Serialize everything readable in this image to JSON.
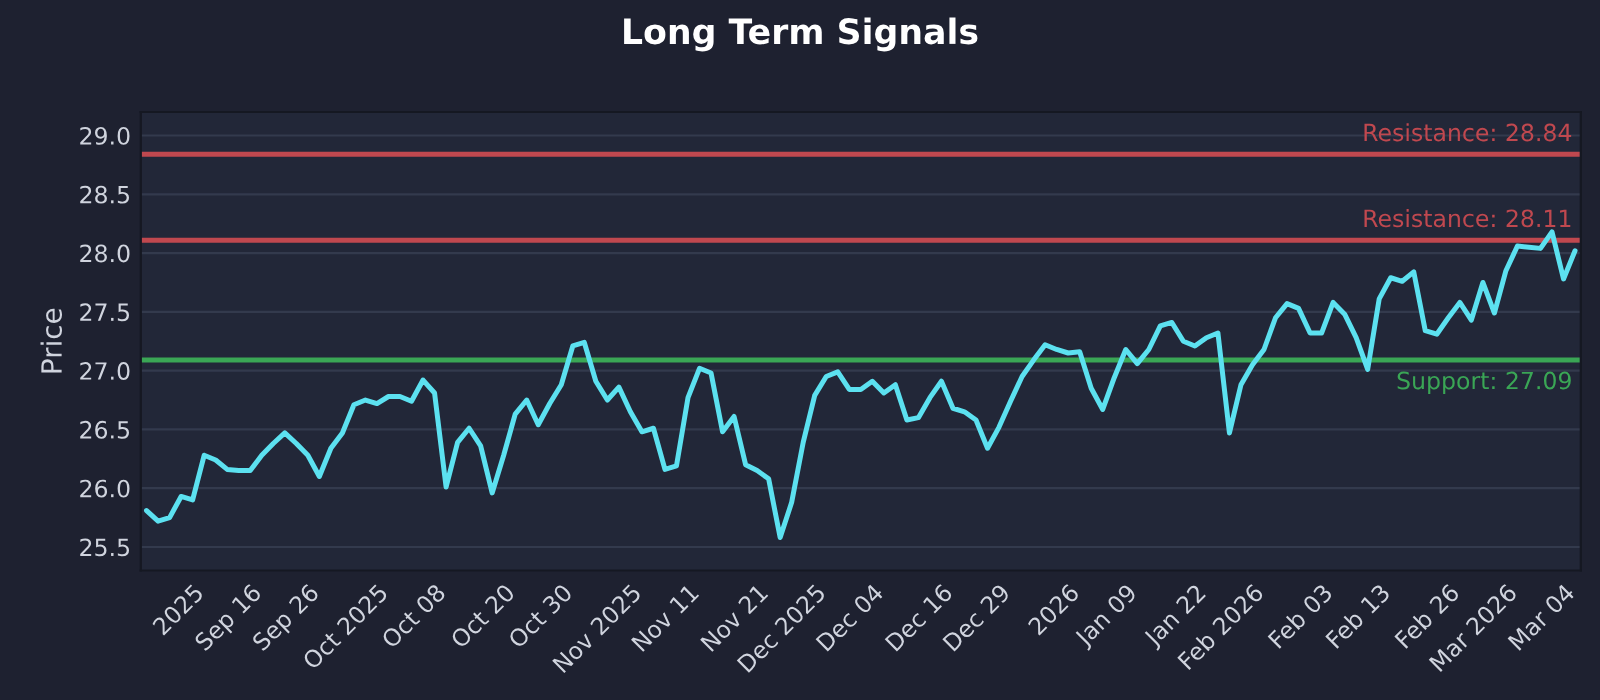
{
  "chart_data": {
    "type": "line",
    "title": "Long Term Signals",
    "ylabel": "Price",
    "categories": [
      null,
      null,
      null,
      null,
      "2025",
      null,
      null,
      null,
      null,
      "Sep 16",
      null,
      null,
      null,
      null,
      "Sep 26",
      null,
      null,
      null,
      null,
      null,
      "Oct 2025",
      null,
      null,
      null,
      null,
      "Oct 08",
      null,
      null,
      null,
      null,
      null,
      "Oct 20",
      null,
      null,
      null,
      null,
      "Oct 30",
      null,
      null,
      null,
      null,
      null,
      "Nov 2025",
      null,
      null,
      null,
      null,
      "Nov 11",
      null,
      null,
      null,
      null,
      null,
      "Nov 21",
      null,
      null,
      null,
      null,
      "Dec 2025",
      null,
      null,
      null,
      null,
      "Dec 04",
      null,
      null,
      null,
      null,
      null,
      "Dec 16",
      null,
      null,
      null,
      null,
      "Dec 29",
      null,
      null,
      null,
      null,
      null,
      "2026",
      null,
      null,
      null,
      null,
      "Jan 09",
      null,
      null,
      null,
      null,
      null,
      "Jan 22",
      null,
      null,
      null,
      null,
      "Feb 2026",
      null,
      null,
      null,
      null,
      null,
      "Feb 03",
      null,
      null,
      null,
      null,
      "Feb 13",
      null,
      null,
      null,
      null,
      null,
      "Feb 26",
      null,
      null,
      null,
      null,
      "Mar 2026",
      null,
      null,
      null,
      null,
      "Mar 04",
      null
    ],
    "series": [
      {
        "color": "#5ce1f0",
        "values": [
          25.81,
          25.72,
          25.75,
          25.93,
          25.9,
          26.28,
          26.24,
          26.16,
          26.15,
          26.15,
          26.28,
          26.38,
          26.47,
          26.38,
          26.28,
          26.1,
          26.34,
          26.47,
          26.71,
          26.75,
          26.72,
          26.78,
          26.78,
          26.74,
          26.92,
          26.81,
          26.01,
          26.39,
          26.51,
          26.36,
          25.96,
          26.28,
          26.63,
          26.75,
          26.54,
          26.72,
          26.88,
          27.21,
          27.24,
          26.91,
          26.75,
          26.86,
          26.65,
          26.48,
          26.51,
          26.16,
          26.19,
          26.77,
          27.02,
          26.98,
          26.48,
          26.61,
          26.2,
          26.15,
          26.08,
          25.58,
          25.88,
          26.39,
          26.79,
          26.95,
          26.99,
          26.84,
          26.84,
          26.91,
          26.81,
          26.88,
          26.58,
          26.6,
          26.77,
          26.91,
          26.68,
          26.65,
          26.58,
          26.34,
          26.52,
          26.74,
          26.95,
          27.09,
          27.22,
          27.18,
          27.15,
          27.16,
          26.85,
          26.67,
          26.94,
          27.18,
          27.06,
          27.18,
          27.38,
          27.41,
          27.25,
          27.21,
          27.28,
          27.32,
          26.47,
          26.88,
          27.05,
          27.18,
          27.45,
          27.57,
          27.53,
          27.32,
          27.32,
          27.58,
          27.48,
          27.28,
          27.01,
          27.61,
          27.79,
          27.76,
          27.84,
          27.34,
          27.31,
          27.45,
          27.58,
          27.43,
          27.75,
          27.49,
          27.85,
          28.06,
          28.05,
          28.04,
          28.18,
          27.78,
          28.02
        ]
      }
    ],
    "ylim": [
      25.3,
      29.2
    ],
    "yticks": [
      {
        "value": 25.5,
        "label": "25.5"
      },
      {
        "value": 26.0,
        "label": "26.0"
      },
      {
        "value": 26.5,
        "label": "26.5"
      },
      {
        "value": 27.0,
        "label": "27.0"
      },
      {
        "value": 27.5,
        "label": "27.5"
      },
      {
        "value": 28.0,
        "label": "28.0"
      },
      {
        "value": 28.5,
        "label": "28.5"
      },
      {
        "value": 29.0,
        "label": "29.0"
      }
    ],
    "ref_lines": [
      {
        "axis": "y",
        "value": 28.84,
        "label": "Resistance: 28.84",
        "color": "#c0484f"
      },
      {
        "axis": "y",
        "value": 28.11,
        "label": "Resistance: 28.11",
        "color": "#c0484f"
      },
      {
        "axis": "y",
        "value": 27.09,
        "label": "Support: 27.09",
        "color": "#3aa655"
      }
    ],
    "grid": "y",
    "line_style": "solid",
    "marker": "none"
  }
}
